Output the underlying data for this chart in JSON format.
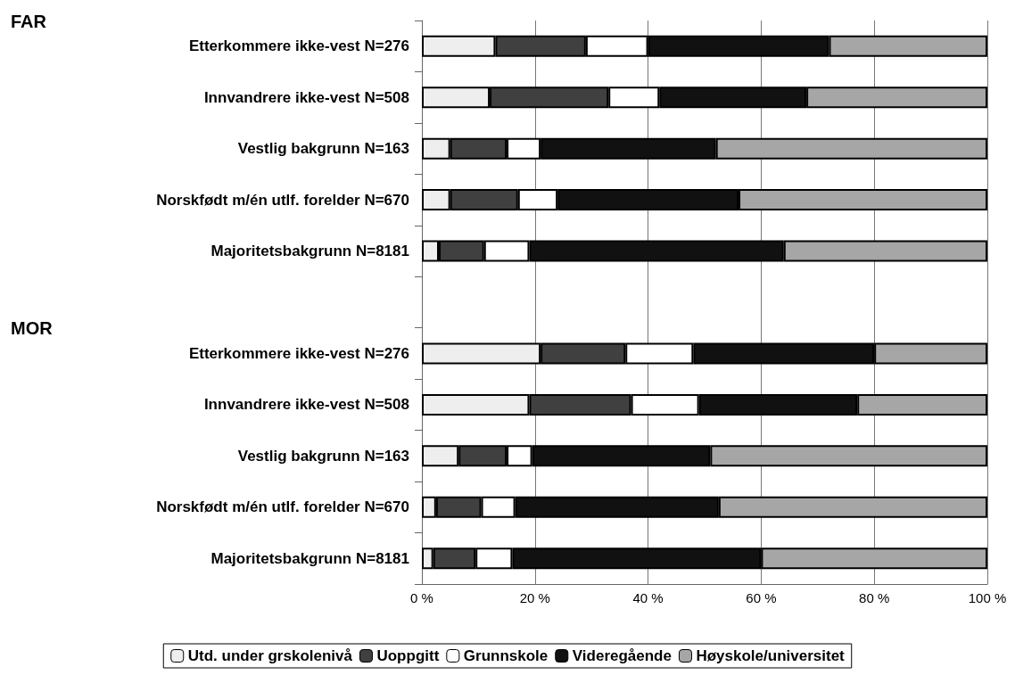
{
  "chart_data": {
    "type": "bar",
    "orientation": "horizontal",
    "stacked": true,
    "categories": [
      "Etterkommere ikke-vest N=276",
      "Innvandrere ikke-vest N=508",
      "Vestlig bakgrunn N=163",
      "Norskfødt m/én utlf. forelder N=670",
      "Majoritetsbakgrunn N=8181",
      null,
      "Etterkommere ikke-vest N=276",
      "Innvandrere ikke-vest N=508",
      "Vestlig bakgrunn N=163",
      "Norskfødt m/én utlf. forelder N=670",
      "Majoritetsbakgrunn N=8181"
    ],
    "series": [
      {
        "name": "Utd. under grskolenivå",
        "color": "#eeeeee",
        "values": [
          13,
          12,
          5,
          5,
          3,
          null,
          21,
          19,
          6.5,
          2.5,
          2
        ]
      },
      {
        "name": "Uoppgitt",
        "color": "#404040",
        "values": [
          16,
          21,
          10,
          12,
          8,
          null,
          15,
          18,
          8.5,
          8,
          7.5
        ]
      },
      {
        "name": "Grunnskole",
        "color": "#ffffff",
        "values": [
          11,
          9,
          6,
          7,
          8,
          null,
          12,
          12,
          4.5,
          6,
          6.5
        ]
      },
      {
        "name": "Videregående",
        "color": "#111111",
        "values": [
          32,
          26,
          31,
          32,
          45,
          null,
          32,
          28,
          31.5,
          36,
          44
        ]
      },
      {
        "name": "Høyskole/universitet",
        "color": "#a6a6a6",
        "values": [
          28,
          32,
          48,
          44,
          36,
          null,
          20,
          23,
          49,
          47.5,
          40
        ]
      }
    ],
    "xlim": [
      0,
      100
    ],
    "xticks": [
      {
        "value": 0,
        "label": "0 %"
      },
      {
        "value": 20,
        "label": "20 %"
      },
      {
        "value": 40,
        "label": "40 %"
      },
      {
        "value": 60,
        "label": "60 %"
      },
      {
        "value": 80,
        "label": "80 %"
      },
      {
        "value": 100,
        "label": "100 %"
      }
    ],
    "grid": "x",
    "legend": "bottom",
    "annotations": [
      "FAR",
      "MOR"
    ]
  }
}
